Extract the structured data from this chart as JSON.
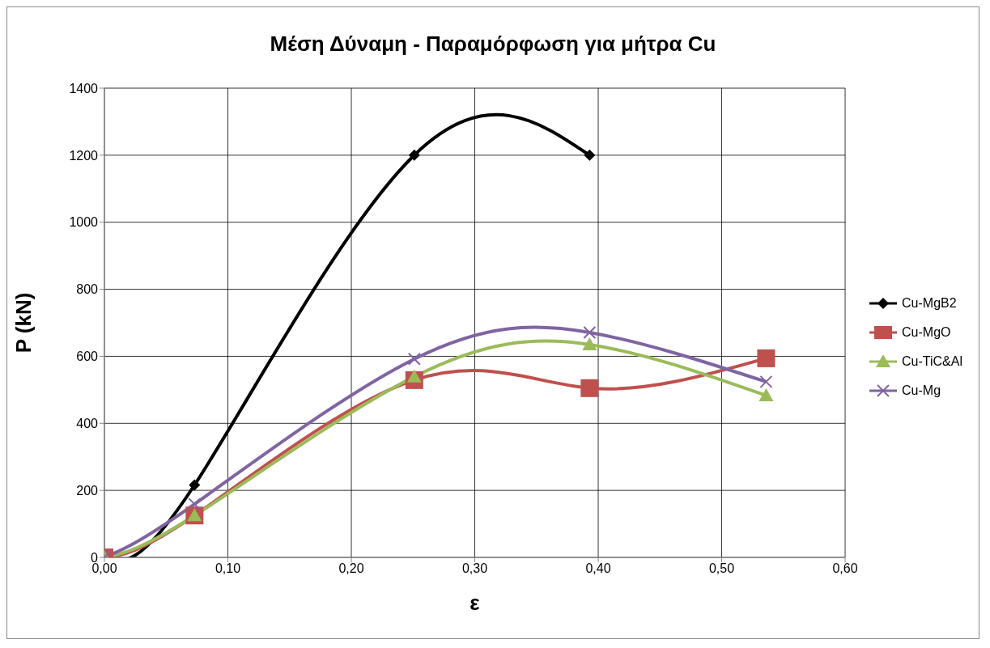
{
  "chart_data": {
    "type": "line",
    "title": "Μέση Δύναμη - Παραμόρφωση για μήτρα Cu",
    "xlabel": "ε",
    "ylabel": "P (kN)",
    "xlim": [
      0,
      0.6
    ],
    "xticks": [
      {
        "value": 0,
        "label": "0,00"
      },
      {
        "value": 0.1,
        "label": "0,10"
      },
      {
        "value": 0.2,
        "label": "0,20"
      },
      {
        "value": 0.3,
        "label": "0,30"
      },
      {
        "value": 0.4,
        "label": "0,40"
      },
      {
        "value": 0.5,
        "label": "0,50"
      },
      {
        "value": 0.6,
        "label": "0,60"
      }
    ],
    "ylim": [
      0,
      1400
    ],
    "yticks": [
      0,
      200,
      400,
      600,
      800,
      1000,
      1200,
      1400
    ],
    "grid": true,
    "legend": "right",
    "series": [
      {
        "name": "Cu-MgB2",
        "color": "#000000",
        "marker": "diamond",
        "x": [
          0,
          0.073,
          0.251,
          0.393
        ],
        "values": [
          0,
          216,
          1200,
          1200
        ]
      },
      {
        "name": "Cu-MgO",
        "color": "#c0504d",
        "marker": "square",
        "x": [
          0,
          0.073,
          0.251,
          0.393,
          0.536
        ],
        "values": [
          0,
          125,
          529,
          505,
          594
        ]
      },
      {
        "name": "Cu-TiC&Al",
        "color": "#9bbb59",
        "marker": "triangle",
        "x": [
          0,
          0.073,
          0.251,
          0.393,
          0.536
        ],
        "values": [
          0,
          125,
          539,
          635,
          483
        ]
      },
      {
        "name": "Cu-Mg",
        "color": "#8064a2",
        "marker": "cross",
        "x": [
          0,
          0.073,
          0.251,
          0.393,
          0.536
        ],
        "values": [
          0,
          159,
          592,
          671,
          524
        ]
      }
    ]
  }
}
